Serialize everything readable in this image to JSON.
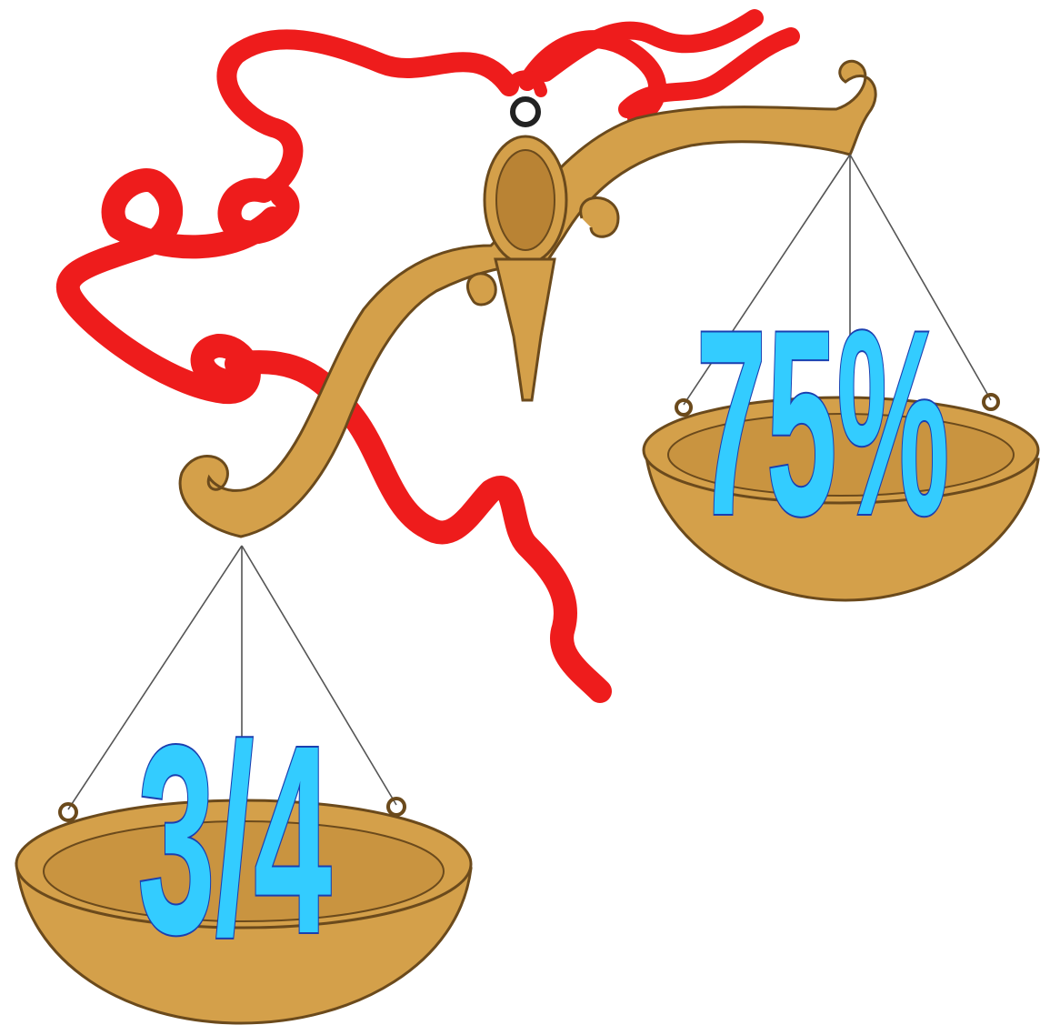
{
  "labels": {
    "right_pan": "75%",
    "left_pan": "3/4"
  }
}
